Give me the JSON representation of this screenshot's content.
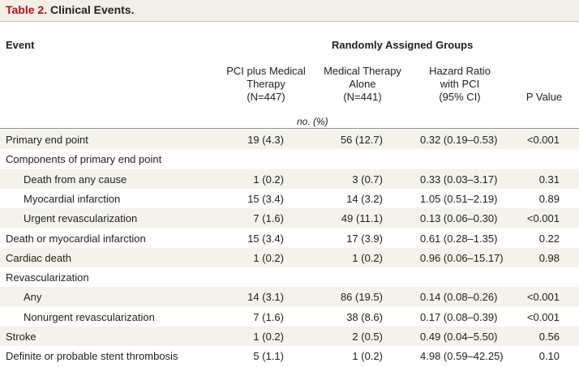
{
  "table": {
    "title_number": "Table 2.",
    "title_text": " Clinical Events.",
    "header": {
      "event": "Event",
      "group": "Randomly Assigned Groups",
      "columns": [
        {
          "line1": "PCI plus Medical",
          "line2": "Therapy",
          "line3": "(N=447)"
        },
        {
          "line1": "Medical Therapy",
          "line2": "Alone",
          "line3": "(N=441)"
        },
        {
          "line1": "Hazard Ratio",
          "line2": "with PCI",
          "line3": "(95% CI)"
        },
        {
          "line1": "P Value"
        }
      ],
      "units": "no. (%)"
    },
    "rows": [
      {
        "event": "Primary end point",
        "pci": "19 (4.3)",
        "med": "56 (12.7)",
        "hr": "0.32 (0.19–0.53)",
        "p": "<0.001"
      },
      {
        "event": "Components of primary end point",
        "pci": "",
        "med": "",
        "hr": "",
        "p": ""
      },
      {
        "event": "Death from any cause",
        "pci": "1 (0.2)",
        "med": "3 (0.7)",
        "hr": "0.33 (0.03–3.17)",
        "p": "0.31"
      },
      {
        "event": "Myocardial infarction",
        "pci": "15 (3.4)",
        "med": "14 (3.2)",
        "hr": "1.05 (0.51–2.19)",
        "p": "0.89"
      },
      {
        "event": "Urgent revascularization",
        "pci": "7 (1.6)",
        "med": "49 (11.1)",
        "hr": "0.13 (0.06–0.30)",
        "p": "<0.001"
      },
      {
        "event": "Death or myocardial infarction",
        "pci": "15 (3.4)",
        "med": "17 (3.9)",
        "hr": "0.61 (0.28–1.35)",
        "p": "0.22"
      },
      {
        "event": "Cardiac death",
        "pci": "1 (0.2)",
        "med": "1 (0.2)",
        "hr": "0.96 (0.06–15.17)",
        "p": "0.98"
      },
      {
        "event": "Revascularization",
        "pci": "",
        "med": "",
        "hr": "",
        "p": ""
      },
      {
        "event": "Any",
        "pci": "14 (3.1)",
        "med": "86 (19.5)",
        "hr": "0.14 (0.08–0.26)",
        "p": "<0.001"
      },
      {
        "event": "Nonurgent revascularization",
        "pci": "7 (1.6)",
        "med": "38 (8.6)",
        "hr": "0.17 (0.08–0.39)",
        "p": "<0.001"
      },
      {
        "event": "Stroke",
        "pci": "1 (0.2)",
        "med": "2 (0.5)",
        "hr": "0.49 (0.04–5.50)",
        "p": "0.56"
      },
      {
        "event": "Definite or probable stent thrombosis",
        "pci": "5 (1.1)",
        "med": "1 (0.2)",
        "hr": "4.98 (0.59–42.25)",
        "p": "0.10"
      }
    ]
  }
}
